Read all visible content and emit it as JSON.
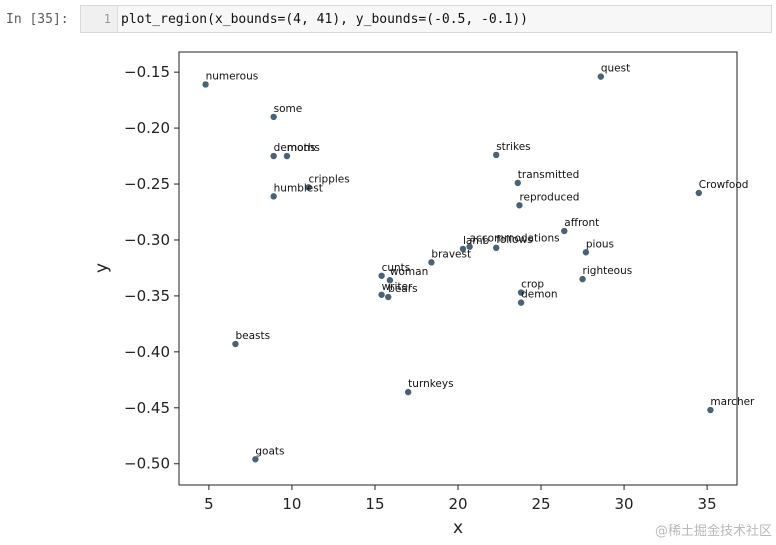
{
  "notebook": {
    "prompt": "In [35]:",
    "line_number": "1",
    "code": "plot_region(x_bounds=(4, 41), y_bounds=(-0.5, -0.1))"
  },
  "watermark": "@稀土掘金技术社区",
  "chart_data": {
    "type": "scatter",
    "xlabel": "x",
    "ylabel": "y",
    "xlim": [
      3.2,
      36.8
    ],
    "ylim": [
      -0.519,
      -0.132
    ],
    "xticks": [
      5,
      10,
      15,
      20,
      25,
      30,
      35
    ],
    "yticks": [
      -0.15,
      -0.2,
      -0.25,
      -0.3,
      -0.35,
      -0.4,
      -0.45,
      -0.5
    ],
    "ytick_labels": [
      "−0.15",
      "−0.20",
      "−0.25",
      "−0.30",
      "−0.35",
      "−0.40",
      "−0.45",
      "−0.50"
    ],
    "point_color": "#4a6274",
    "points": [
      {
        "label": "numerous",
        "x": 4.8,
        "y": -0.161
      },
      {
        "label": "quest",
        "x": 28.6,
        "y": -0.154
      },
      {
        "label": "some",
        "x": 8.9,
        "y": -0.19
      },
      {
        "label": "demons",
        "x": 8.9,
        "y": -0.225
      },
      {
        "label": "moths",
        "x": 9.7,
        "y": -0.225
      },
      {
        "label": "strikes",
        "x": 22.3,
        "y": -0.224
      },
      {
        "label": "cripples",
        "x": 11.0,
        "y": -0.253
      },
      {
        "label": "humblest",
        "x": 8.9,
        "y": -0.261
      },
      {
        "label": "transmitted",
        "x": 23.6,
        "y": -0.249
      },
      {
        "label": "Crowfood",
        "x": 34.5,
        "y": -0.258
      },
      {
        "label": "reproduced",
        "x": 23.7,
        "y": -0.269
      },
      {
        "label": "affront",
        "x": 26.4,
        "y": -0.292
      },
      {
        "label": "accommodations",
        "x": 20.7,
        "y": -0.306
      },
      {
        "label": "lamb",
        "x": 20.3,
        "y": -0.308
      },
      {
        "label": "follows",
        "x": 22.3,
        "y": -0.307
      },
      {
        "label": "pious",
        "x": 27.7,
        "y": -0.311
      },
      {
        "label": "bravest",
        "x": 18.4,
        "y": -0.32
      },
      {
        "label": "cunts",
        "x": 15.4,
        "y": -0.332
      },
      {
        "label": "woman",
        "x": 15.9,
        "y": -0.336
      },
      {
        "label": "righteous",
        "x": 27.5,
        "y": -0.335
      },
      {
        "label": "writer",
        "x": 15.4,
        "y": -0.349
      },
      {
        "label": "bears",
        "x": 15.8,
        "y": -0.351
      },
      {
        "label": "crop",
        "x": 23.8,
        "y": -0.347
      },
      {
        "label": "demon",
        "x": 23.8,
        "y": -0.356
      },
      {
        "label": "beasts",
        "x": 6.6,
        "y": -0.393
      },
      {
        "label": "turnkeys",
        "x": 17.0,
        "y": -0.436
      },
      {
        "label": "marcher",
        "x": 35.2,
        "y": -0.452
      },
      {
        "label": "goats",
        "x": 7.8,
        "y": -0.496
      }
    ]
  }
}
